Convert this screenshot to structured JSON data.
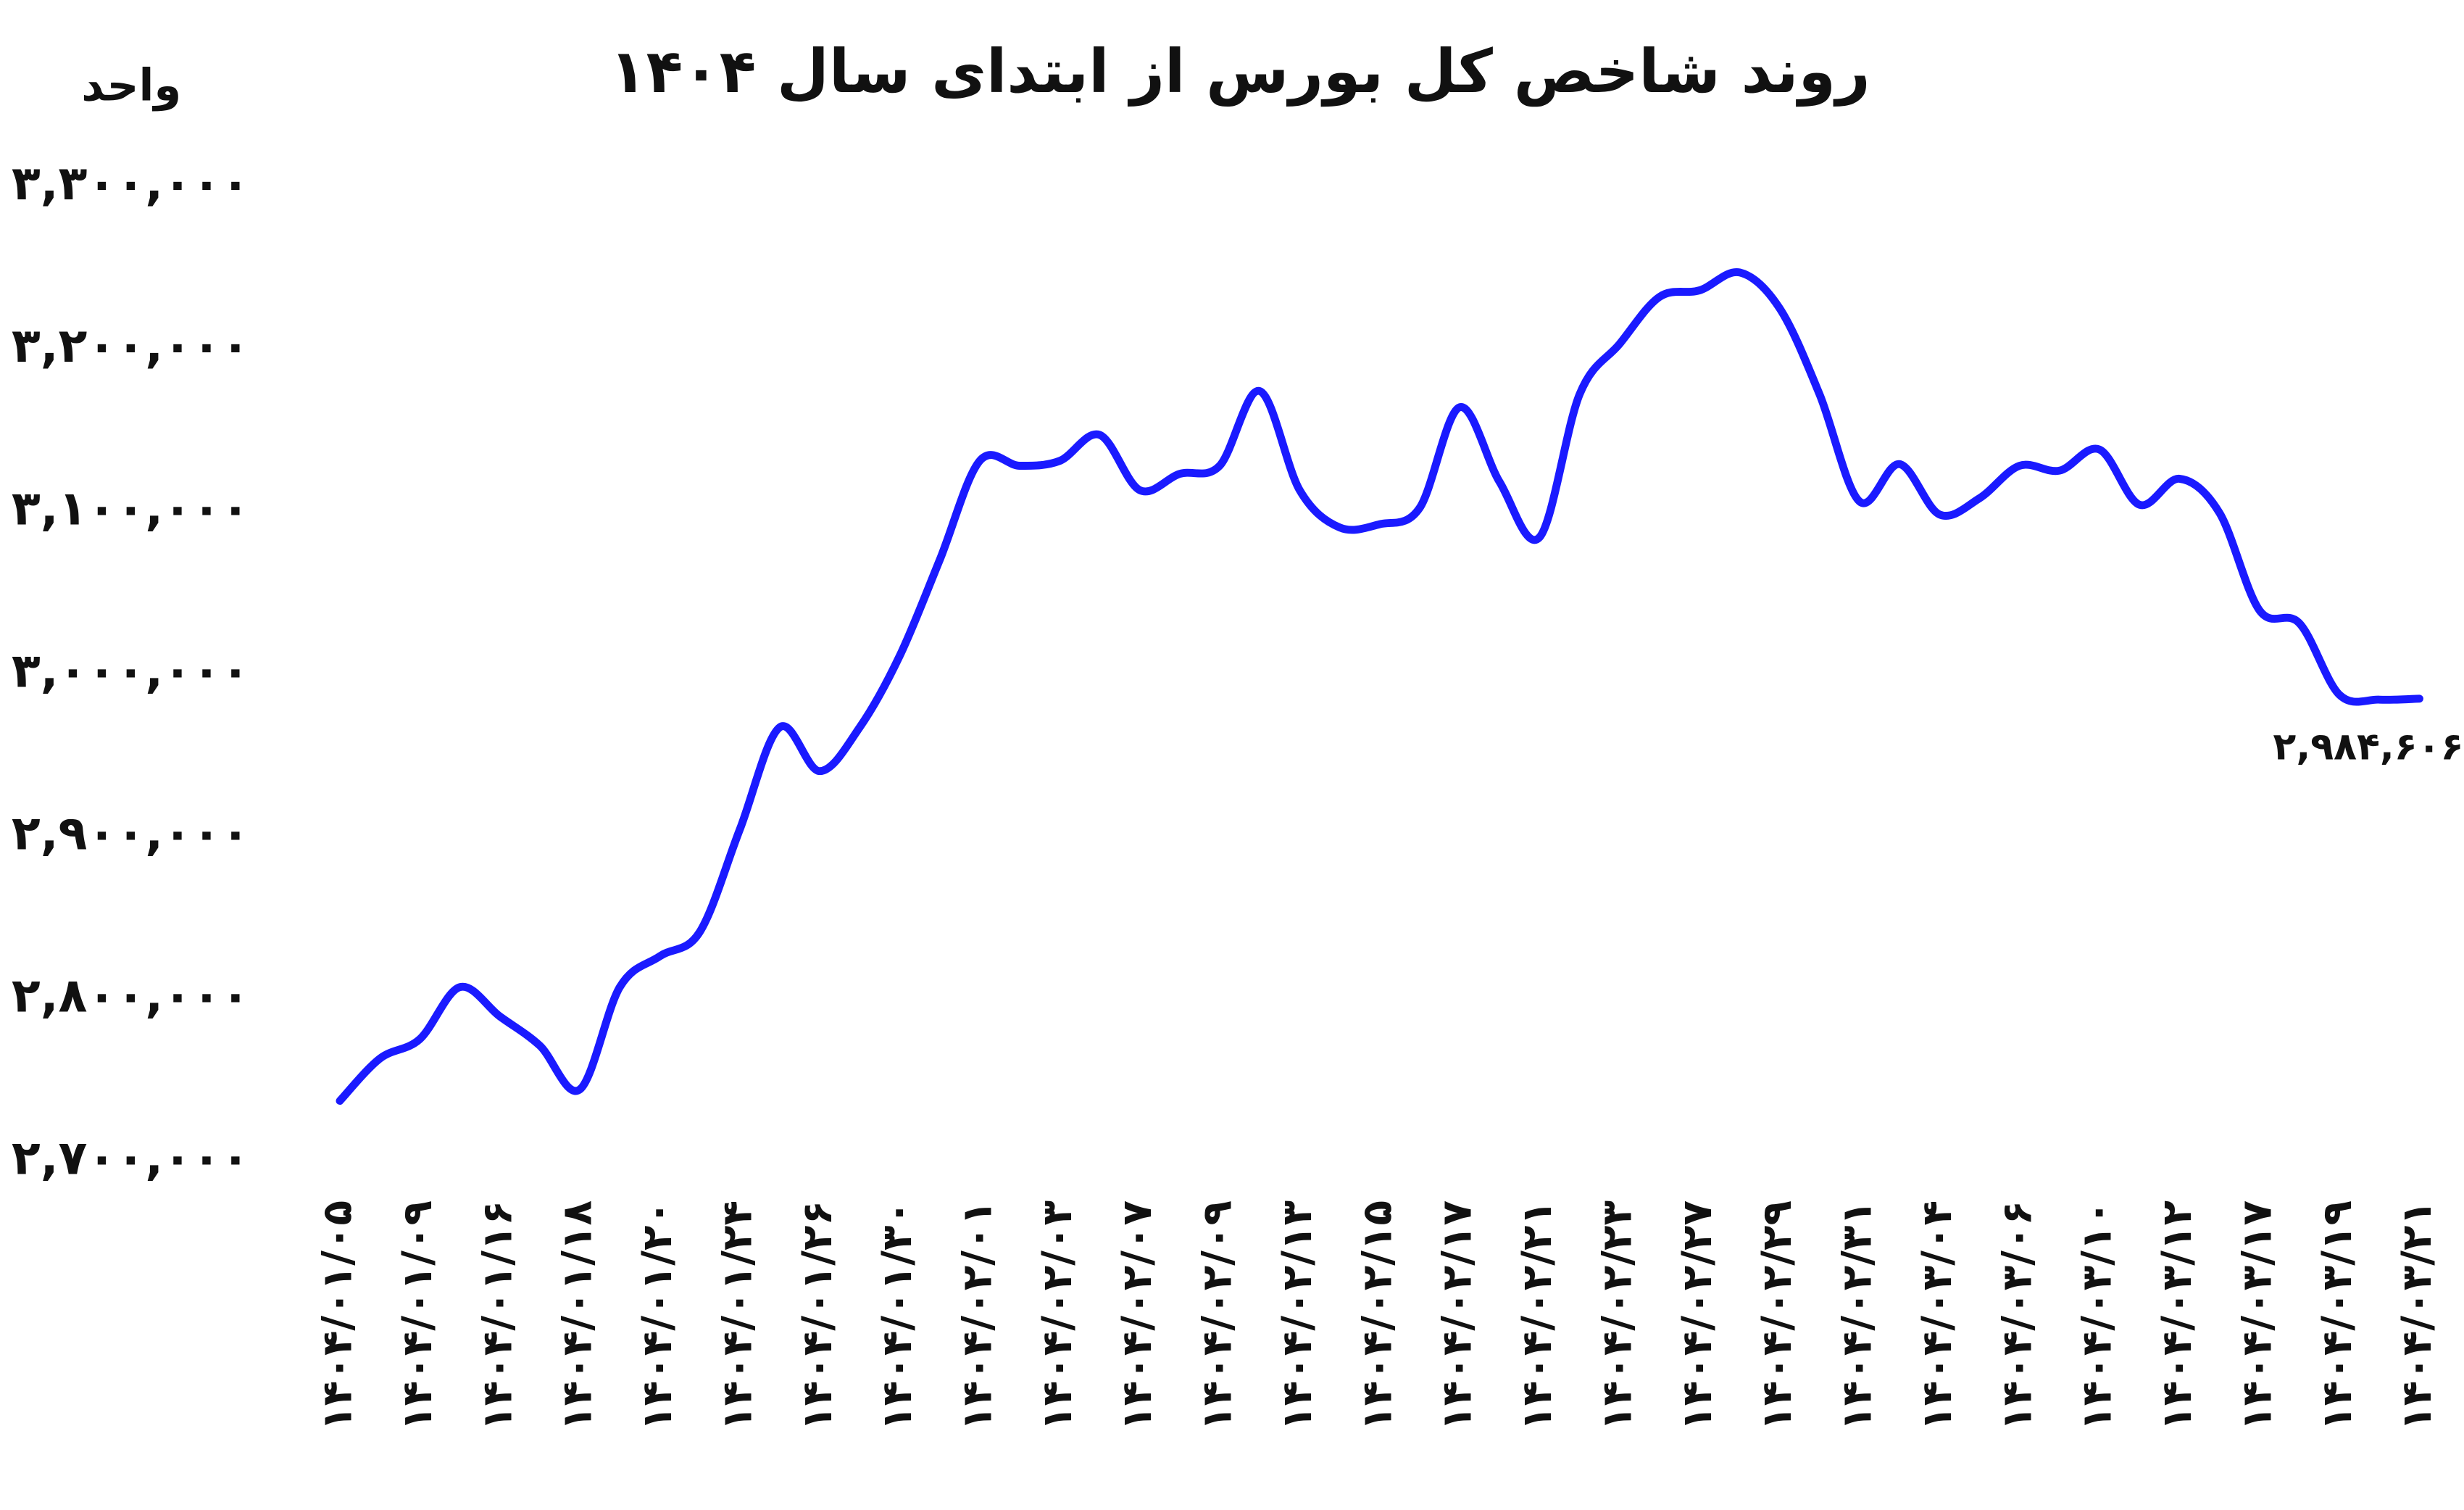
{
  "chart_data": {
    "type": "line",
    "title": "روند شاخص کل بورس از ابتدای سال ۱۴۰۴",
    "y_label": "واحد",
    "categories": [
      "۱۴۰۴/۰۱/۰۵",
      null,
      "۱۴۰۴/۰۱/۰۹",
      null,
      "۱۴۰۴/۰۱/۱۶",
      null,
      "۱۴۰۴/۰۱/۱۸",
      null,
      "۱۴۰۴/۰۱/۲۰",
      null,
      "۱۴۰۴/۰۱/۲۴",
      null,
      "۱۴۰۴/۰۱/۲۶",
      null,
      "۱۴۰۴/۰۱/۳۰",
      null,
      "۱۴۰۴/۰۲/۰۱",
      null,
      "۱۴۰۴/۰۲/۰۳",
      null,
      "۱۴۰۴/۰۲/۰۷",
      null,
      "۱۴۰۴/۰۲/۰۹",
      null,
      "۱۴۰۴/۰۲/۱۳",
      null,
      "۱۴۰۴/۰۲/۱۵",
      null,
      "۱۴۰۴/۰۲/۱۷",
      null,
      "۱۴۰۴/۰۲/۲۱",
      null,
      "۱۴۰۴/۰۲/۲۳",
      null,
      "۱۴۰۴/۰۲/۲۷",
      null,
      "۱۴۰۴/۰۲/۲۹",
      null,
      "۱۴۰۴/۰۲/۳۱",
      null,
      "۱۴۰۴/۰۳/۰۴",
      null,
      "۱۴۰۴/۰۳/۰۶",
      null,
      "۱۴۰۴/۰۳/۱۰",
      null,
      "۱۴۰۴/۰۳/۱۲",
      null,
      "۱۴۰۴/۰۳/۱۷",
      null,
      "۱۴۰۴/۰۳/۱۹",
      null,
      "۱۴۰۴/۰۳/۲۱"
    ],
    "series": [
      {
        "color": "#1a1aff",
        "values": [
          2737000,
          2763000,
          2775000,
          2807000,
          2789000,
          2771000,
          2744000,
          2807000,
          2826000,
          2841000,
          2904000,
          2967000,
          2940000,
          2967000,
          3011000,
          3070000,
          3131000,
          3128000,
          3131000,
          3147000,
          3113000,
          3123000,
          3128000,
          3174000,
          3113000,
          3090000,
          3092000,
          3102000,
          3164000,
          3118000,
          3084000,
          3172000,
          3203000,
          3232000,
          3236000,
          3247000,
          3225000,
          3172000,
          3106000,
          3129000,
          3098000,
          3108000,
          3128000,
          3125000,
          3138000,
          3104000,
          3120000,
          3099000,
          3039000,
          3031000,
          2987000,
          2984000,
          2984606
        ],
        "value_labels": [
          null,
          null,
          null,
          null,
          null,
          null,
          null,
          null,
          null,
          null,
          null,
          null,
          null,
          null,
          null,
          null,
          null,
          null,
          null,
          null,
          null,
          null,
          null,
          null,
          null,
          null,
          null,
          null,
          null,
          null,
          null,
          null,
          null,
          null,
          null,
          null,
          null,
          null,
          null,
          null,
          null,
          null,
          null,
          null,
          null,
          null,
          null,
          null,
          null,
          null,
          null,
          null,
          "۲,۹۸۴,۶۰۶"
        ]
      }
    ],
    "ylim": [
      2700000,
      3300000
    ],
    "yticks": [
      {
        "value": 2700000,
        "label": "۲,۷۰۰,۰۰۰"
      },
      {
        "value": 2800000,
        "label": "۲,۸۰۰,۰۰۰"
      },
      {
        "value": 2900000,
        "label": "۲,۹۰۰,۰۰۰"
      },
      {
        "value": 3000000,
        "label": "۳,۰۰۰,۰۰۰"
      },
      {
        "value": 3100000,
        "label": "۳,۱۰۰,۰۰۰"
      },
      {
        "value": 3200000,
        "label": "۳,۲۰۰,۰۰۰"
      },
      {
        "value": 3300000,
        "label": "۳,۳۰۰,۰۰۰"
      }
    ],
    "grid": false
  }
}
